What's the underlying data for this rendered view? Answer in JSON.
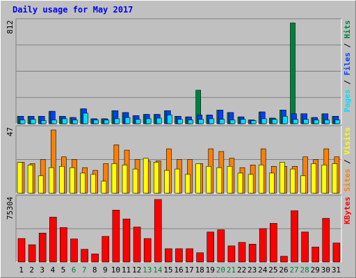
{
  "title": "Daily usage for May 2017",
  "colors": {
    "background": "#c0c0c0",
    "hits": "#008040",
    "files": "#0040ff",
    "pages": "#00e0ff",
    "visits": "#ffff00",
    "sites": "#ff8000",
    "kbytes": "#ff0000",
    "title": "#0000ff",
    "weekend_day": "#008040"
  },
  "chart_data": [
    {
      "type": "bar",
      "panel": "hits-files-pages",
      "max_label": "812",
      "legend": [
        {
          "name": "Pages",
          "color": "#00e0ff"
        },
        {
          "name": "Files",
          "color": "#0040ff"
        },
        {
          "name": "Hits",
          "color": "#008040"
        }
      ],
      "ylim": [
        0,
        812
      ],
      "categories": [
        "1",
        "2",
        "3",
        "4",
        "5",
        "6",
        "7",
        "8",
        "9",
        "10",
        "11",
        "12",
        "13",
        "14",
        "15",
        "16",
        "17",
        "18",
        "19",
        "20",
        "21",
        "22",
        "23",
        "24",
        "25",
        "26",
        "27",
        "28",
        "29",
        "30",
        "31"
      ],
      "series": [
        {
          "name": "Hits",
          "values": [
            60,
            60,
            60,
            100,
            60,
            50,
            120,
            40,
            40,
            105,
            90,
            65,
            75,
            75,
            105,
            60,
            55,
            270,
            70,
            110,
            90,
            55,
            30,
            95,
            45,
            110,
            812,
            80,
            50,
            80,
            60
          ]
        },
        {
          "name": "Files",
          "values": [
            60,
            60,
            60,
            100,
            60,
            50,
            120,
            40,
            40,
            105,
            90,
            65,
            75,
            75,
            105,
            60,
            55,
            70,
            70,
            110,
            90,
            55,
            30,
            95,
            45,
            110,
            80,
            80,
            50,
            80,
            60
          ]
        },
        {
          "name": "Pages",
          "values": [
            30,
            35,
            25,
            30,
            40,
            30,
            85,
            30,
            30,
            40,
            50,
            35,
            40,
            45,
            70,
            35,
            30,
            35,
            40,
            35,
            30,
            35,
            25,
            40,
            35,
            60,
            35,
            35,
            30,
            30,
            30
          ]
        }
      ]
    },
    {
      "type": "bar",
      "panel": "visits-sites",
      "max_label": "47",
      "legend": [
        {
          "name": "Sites",
          "color": "#ff8000"
        },
        {
          "name": "Visits",
          "color": "#ffff00"
        }
      ],
      "ylim": [
        0,
        47
      ],
      "categories": [
        "1",
        "2",
        "3",
        "4",
        "5",
        "6",
        "7",
        "8",
        "9",
        "10",
        "11",
        "12",
        "13",
        "14",
        "15",
        "16",
        "17",
        "18",
        "19",
        "20",
        "21",
        "22",
        "23",
        "24",
        "25",
        "26",
        "27",
        "28",
        "29",
        "30",
        "31"
      ],
      "series": [
        {
          "name": "Visits",
          "values": [
            23,
            21,
            13,
            19,
            20,
            19,
            15,
            14,
            9,
            22,
            21,
            18,
            26,
            23,
            17,
            18,
            14,
            22,
            20,
            19,
            20,
            15,
            14,
            21,
            15,
            23,
            18,
            13,
            22,
            21,
            22
          ]
        },
        {
          "name": "Sites",
          "values": [
            23,
            22,
            25,
            47,
            27,
            25,
            19,
            17,
            22,
            36,
            32,
            25,
            24,
            24,
            33,
            25,
            25,
            22,
            33,
            31,
            26,
            19,
            21,
            33,
            20,
            20,
            20,
            27,
            25,
            33,
            27
          ]
        }
      ]
    },
    {
      "type": "bar",
      "panel": "kbytes",
      "max_label": "75304",
      "legend": [
        {
          "name": "KBytes",
          "color": "#ff0000"
        }
      ],
      "ylim": [
        0,
        75304
      ],
      "categories": [
        "1",
        "2",
        "3",
        "4",
        "5",
        "6",
        "7",
        "8",
        "9",
        "10",
        "11",
        "12",
        "13",
        "14",
        "15",
        "16",
        "17",
        "18",
        "19",
        "20",
        "21",
        "22",
        "23",
        "24",
        "25",
        "26",
        "27",
        "28",
        "29",
        "30",
        "31"
      ],
      "series": [
        {
          "name": "KBytes",
          "values": [
            28300,
            20800,
            34800,
            54000,
            41500,
            27800,
            15300,
            9700,
            30900,
            62500,
            51800,
            42100,
            28300,
            75304,
            16000,
            16000,
            16000,
            11100,
            36100,
            38800,
            19400,
            23600,
            21500,
            40200,
            46500,
            6900,
            61800,
            36100,
            18000,
            52600,
            22900
          ]
        }
      ]
    }
  ],
  "weekend_days": [
    "6",
    "7",
    "13",
    "14",
    "20",
    "21",
    "27",
    "28"
  ]
}
